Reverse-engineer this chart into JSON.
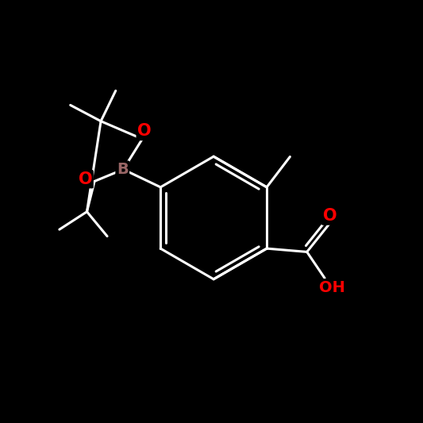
{
  "bg_color": "#000000",
  "bond_color": "#ffffff",
  "bond_width": 2.2,
  "atom_colors": {
    "O": "#ff0000",
    "B": "#996666",
    "C": "#ffffff",
    "H": "#ffffff"
  },
  "figsize": [
    5.33,
    5.33
  ],
  "dpi": 100
}
